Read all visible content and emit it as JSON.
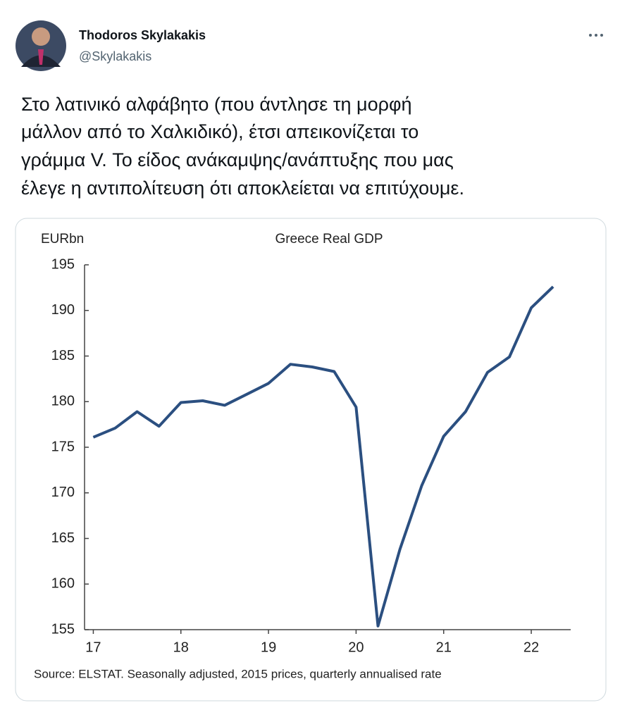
{
  "author": {
    "name": "Thodoros Skylakakis",
    "handle": "@Skylakakis"
  },
  "tweet": {
    "text_lines": [
      "Στο λατινικό αλφάβητο (που άντλησε τη μορφή",
      "μάλλον από το Χαλκιδικό), έτσι απεικονίζεται το",
      "γράμμα V. Το είδος ανάκαμψης/ανάπτυξης που μας",
      "έλεγε η αντιπολίτευση ότι αποκλείεται να επιτύχουμε."
    ]
  },
  "chart_data": {
    "type": "line",
    "title": "Greece Real  GDP",
    "y_label": "EURbn",
    "source": "Source: ELSTAT. Seasonally adjusted, 2015 prices, quarterly annualised rate",
    "x": [
      17,
      17.25,
      17.5,
      17.75,
      18,
      18.25,
      18.5,
      18.75,
      19,
      19.25,
      19.5,
      19.75,
      20,
      20.25,
      20.5,
      20.75,
      21,
      21.25,
      21.5,
      21.75,
      22,
      22.25
    ],
    "values": [
      176.1,
      177.1,
      178.9,
      177.3,
      179.9,
      180.1,
      179.6,
      180.8,
      182.0,
      184.1,
      183.8,
      183.3,
      179.4,
      155.4,
      163.8,
      170.8,
      176.2,
      178.9,
      183.2,
      184.9,
      190.3,
      192.6
    ],
    "color": "#2b4f80",
    "xlim": [
      16.9,
      22.45
    ],
    "xticks": [
      17,
      18,
      19,
      20,
      21,
      22
    ],
    "ylim": [
      155,
      195
    ],
    "yticks": [
      155,
      160,
      165,
      170,
      175,
      180,
      185,
      190,
      195
    ]
  }
}
